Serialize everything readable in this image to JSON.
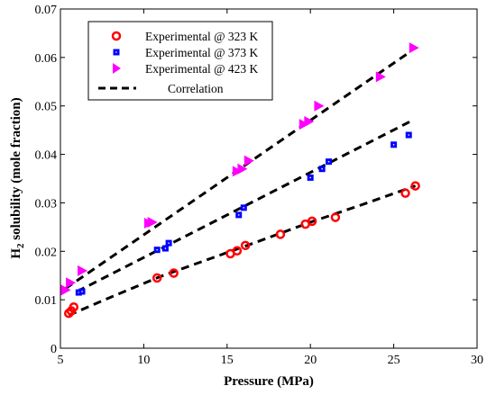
{
  "chart_data": {
    "type": "scatter",
    "xlabel": "Pressure (MPa)",
    "ylabel_main": "H",
    "ylabel_sub": "2",
    "ylabel_rest": " solubility (mole fraction)",
    "xlim": [
      5,
      30
    ],
    "ylim": [
      0,
      0.07
    ],
    "xticks": [
      "5",
      "10",
      "15",
      "20",
      "25",
      "30"
    ],
    "yticks": [
      "0",
      "0.01",
      "0.02",
      "0.03",
      "0.04",
      "0.05",
      "0.06",
      "0.07"
    ],
    "grid": false,
    "legend_position": "top-left",
    "series": [
      {
        "name": "Experimental @ 323 K",
        "marker": "circle",
        "color": "#ff0000",
        "x": [
          5.5,
          5.65,
          5.8,
          10.8,
          11.8,
          15.2,
          15.6,
          16.1,
          18.2,
          19.7,
          20.1,
          21.5,
          25.7,
          26.3
        ],
        "y": [
          0.0072,
          0.0077,
          0.0085,
          0.0145,
          0.0155,
          0.0195,
          0.0201,
          0.0212,
          0.0235,
          0.0256,
          0.0262,
          0.027,
          0.032,
          0.0335
        ]
      },
      {
        "name": "Experimental @ 373 K",
        "marker": "square",
        "color": "#0000ff",
        "x": [
          6.1,
          6.3,
          10.8,
          11.3,
          11.5,
          15.7,
          16.0,
          20.0,
          20.7,
          21.1,
          25.0,
          25.9
        ],
        "y": [
          0.0115,
          0.0117,
          0.0203,
          0.0206,
          0.0217,
          0.0275,
          0.029,
          0.0352,
          0.037,
          0.0385,
          0.042,
          0.044
        ]
      },
      {
        "name": "Experimental @ 423 K",
        "marker": "triangle-right",
        "color": "#ff00ff",
        "x": [
          5.3,
          5.6,
          6.3,
          10.3,
          10.5,
          15.6,
          15.9,
          16.3,
          19.6,
          19.9,
          20.5,
          24.2,
          26.2
        ],
        "y": [
          0.012,
          0.0135,
          0.016,
          0.0258,
          0.026,
          0.0365,
          0.037,
          0.0387,
          0.0462,
          0.0468,
          0.05,
          0.056,
          0.062
        ]
      },
      {
        "name": "Correlation",
        "kind": "dashed-lines",
        "color": "#000000",
        "lines": [
          {
            "x": [
              5.5,
              8,
              11,
              14,
              17,
              20,
              23,
              26.3
            ],
            "y": [
              0.0068,
              0.0105,
              0.0148,
              0.0185,
              0.0222,
              0.026,
              0.0295,
              0.0335
            ]
          },
          {
            "x": [
              6.0,
              26.0
            ],
            "y": [
              0.0117,
              0.0468
            ]
          },
          {
            "x": [
              5.3,
              26.0
            ],
            "y": [
              0.0123,
              0.0612
            ]
          }
        ]
      }
    ]
  }
}
